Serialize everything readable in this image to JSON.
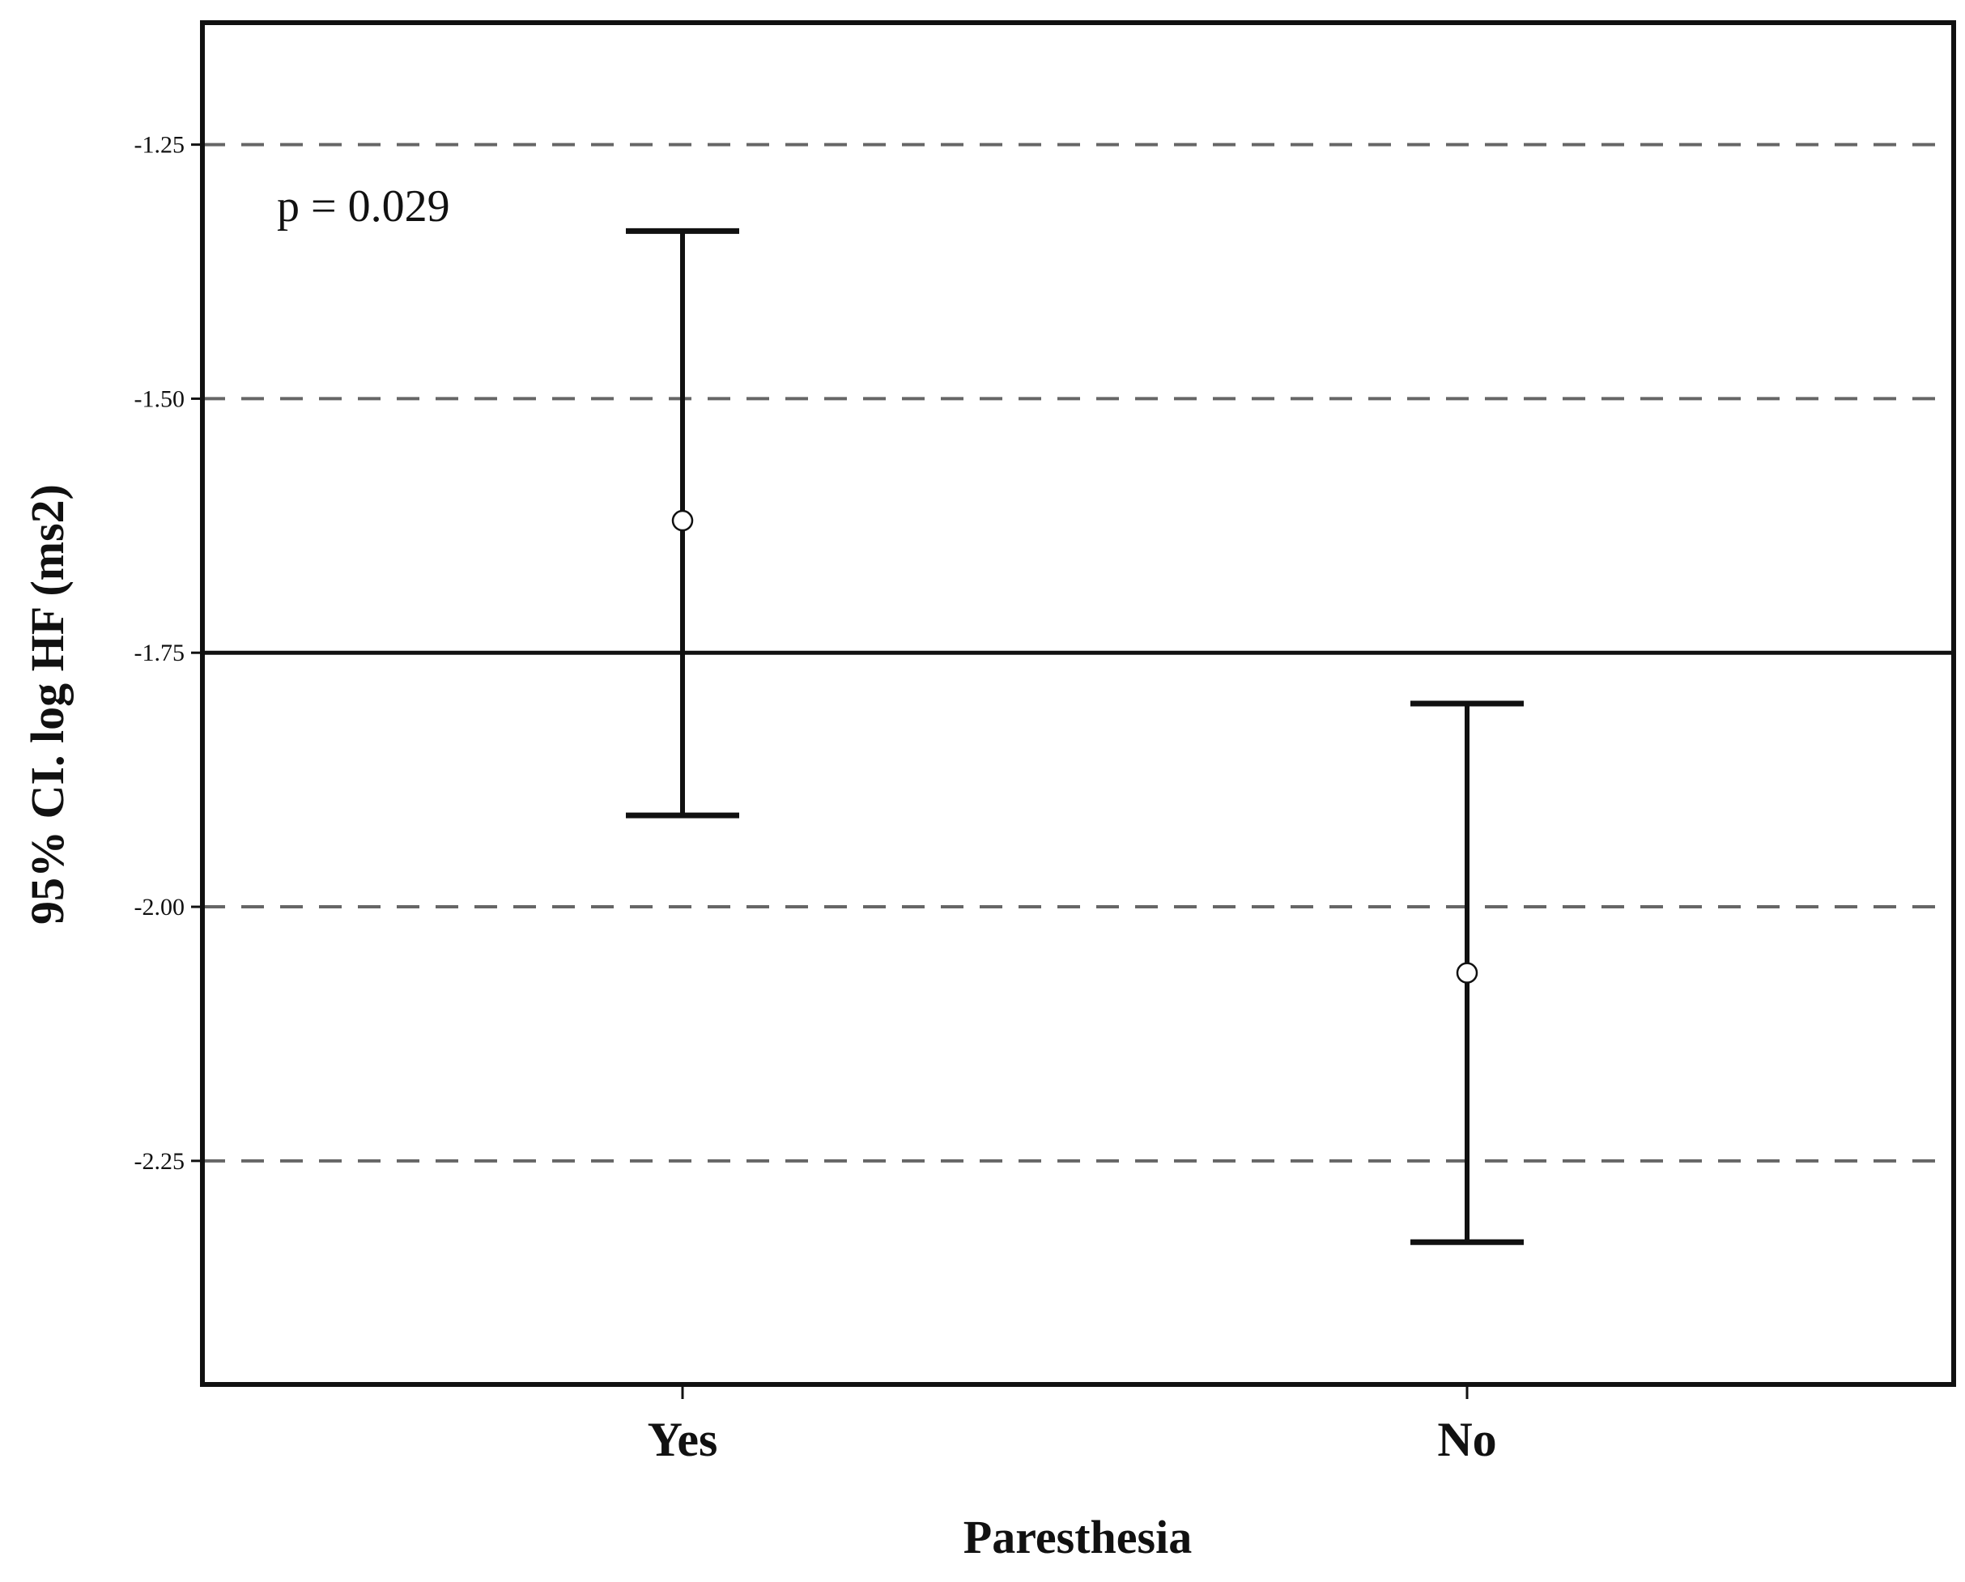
{
  "chart_data": {
    "type": "errorbar",
    "categories": [
      "Yes",
      "No"
    ],
    "series": [
      {
        "means": [
          -1.62,
          -2.065
        ],
        "ci_lower": [
          -1.91,
          -2.33
        ],
        "ci_upper": [
          -1.335,
          -1.8
        ]
      }
    ],
    "reference_line": -1.75,
    "xlabel": "Paresthesia",
    "ylabel": "95% CI. log HF (ms2)",
    "yticks": [
      -1.25,
      -1.5,
      -1.75,
      -2.0,
      -2.25
    ],
    "ytick_labels": [
      "-1.25",
      "-1.50",
      "-1.75",
      "-2.00",
      "-2.25"
    ],
    "ylim": [
      -2.47,
      -1.13
    ],
    "grid": "dashed horizontal at ticks",
    "annotations": [
      {
        "text": "p = 0.029"
      }
    ],
    "colors": {
      "line": "#111111",
      "grid": "#666666",
      "frame": "#111111"
    }
  }
}
